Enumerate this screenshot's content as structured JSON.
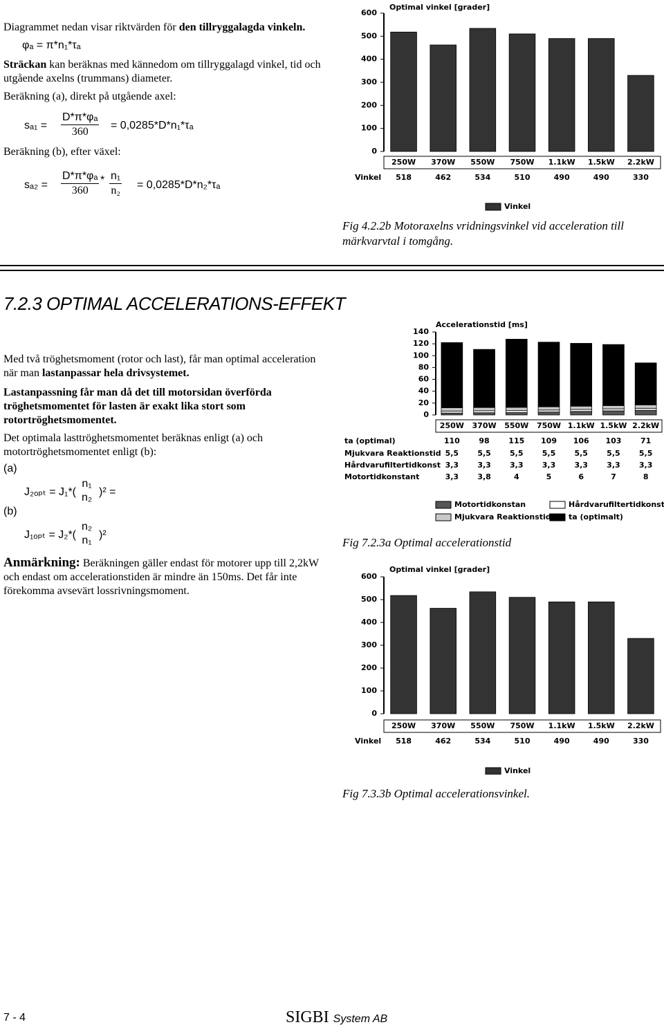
{
  "top": {
    "p1a": "Diagrammet nedan visar riktvärden för ",
    "p1b": "den tillryggalagda vinkeln.",
    "f1": "φₐ  =  π*n₁*τₐ",
    "p2a": "Sträckan",
    "p2b": " kan beräknas med kännedom om tillryggalagd vinkel, tid och utgående axelns (trummans) diameter.",
    "p3": "Beräkning (a), direkt på utgående axel:",
    "f2": {
      "lhs": "sₐ₁  =",
      "num": "D*π*φₐ",
      "den": "360",
      "rhs": "= 0,0285*D*n₁*τₐ"
    },
    "p4": "Beräkning (b), efter växel:",
    "f3": {
      "lhs": "sₐ₂  =",
      "num": "D*π*φₐ",
      "den": "360",
      "op": "*",
      "num2": "n₁",
      "den2": "n₂",
      "rhs": "= 0,0285*D*n₂*τₐ"
    },
    "caption": "Fig 4.2.2b  Motoraxelns vridningsvinkel vid acceleration till märkvarvtal i tomgång."
  },
  "section": {
    "heading": "7.2.3 OPTIMAL ACCELERATIONS-EFFEKT",
    "p1a": "Med två tröghetsmoment (rotor och last), får man optimal acceleration när man ",
    "p1b": "lastanpassar hela drivsystemet.",
    "p2": "Lastanpassning får man då det till motorsidan överförda tröghetsmomentet för lasten är exakt lika stort som rotortröghetsmomentet.",
    "p3": "Det optimala lasttröghetsmomentet beräknas enligt (a) och motortröghetsmomentet enligt (b):",
    "la": "(a)",
    "lb": "(b)",
    "fa": {
      "lhs": "J₂ₒₚₜ = J₁*(",
      "num": "n₁",
      "den": "n₂",
      "rhs": ")² ="
    },
    "fb": {
      "lhs": "J₁ₒₚₜ = J₂*(",
      "num": "n₂",
      "den": "n₁",
      "rhs": ")²"
    },
    "note_a": "Anmärkning:",
    "note_b": " Beräkningen gäller endast för motorer upp till 2,2kW och endast om accelerationstiden är mindre än 150ms. Det får inte förekomma avsevärt lossrivningsmoment.",
    "caption_a": "Fig 7.2.3a  Optimal accelerationstid",
    "caption_b": "Fig 7.3.3b  Optimal accelerationsvinkel."
  },
  "footer": {
    "page": "7 - 4",
    "brand": "SIGBI",
    "brand2": "System AB"
  },
  "chart_data": [
    {
      "type": "bar",
      "title": "Optimal vinkel [grader]",
      "categories": [
        "250W",
        "370W",
        "550W",
        "750W",
        "1.1kW",
        "1.5kW",
        "2.2kW"
      ],
      "series": [
        {
          "name": "Vinkel",
          "color": "#333333",
          "values": [
            518,
            462,
            534,
            510,
            490,
            490,
            330
          ]
        }
      ],
      "ylim": [
        0,
        600
      ],
      "yticks": [
        0,
        100,
        200,
        300,
        400,
        500,
        600
      ]
    },
    {
      "type": "stacked_bar",
      "title": "Accelerationstid [ms]",
      "categories": [
        "250W",
        "370W",
        "550W",
        "750W",
        "1.1kW",
        "1.5kW",
        "2.2kW"
      ],
      "series": [
        {
          "name": "ta (optimalt)",
          "table_label": "ta (optimal)",
          "color": "#000000",
          "values": [
            110,
            98,
            115,
            109,
            106,
            103,
            71
          ]
        },
        {
          "name": "Mjukvara Reaktionstid",
          "table_label": "Mjukvara Reaktionstid",
          "color": "#c8c8c8",
          "values": [
            5.5,
            5.5,
            5.5,
            5.5,
            5.5,
            5.5,
            5.5
          ],
          "value_labels": [
            "5,5",
            "5,5",
            "5,5",
            "5,5",
            "5,5",
            "5,5",
            "5,5"
          ]
        },
        {
          "name": "Hårdvarufiltertidkonst",
          "table_label": "Hårdvarufiltertidkonst",
          "color": "#ffffff",
          "values": [
            3.3,
            3.3,
            3.3,
            3.3,
            3.3,
            3.3,
            3.3
          ],
          "value_labels": [
            "3,3",
            "3,3",
            "3,3",
            "3,3",
            "3,3",
            "3,3",
            "3,3"
          ]
        },
        {
          "name": "Motortidkonstan",
          "table_label": "Motortidkonstant",
          "color": "#555555",
          "values": [
            3.3,
            3.8,
            4,
            5,
            6,
            7,
            8
          ],
          "value_labels": [
            "3,3",
            "3,8",
            "4",
            "5",
            "6",
            "7",
            "8"
          ]
        }
      ],
      "ylim": [
        0,
        140
      ],
      "yticks": [
        0,
        20,
        40,
        60,
        80,
        100,
        120,
        140
      ]
    },
    {
      "type": "bar",
      "title": "Optimal vinkel [grader]",
      "categories": [
        "250W",
        "370W",
        "550W",
        "750W",
        "1.1kW",
        "1.5kW",
        "2.2kW"
      ],
      "series": [
        {
          "name": "Vinkel",
          "color": "#333333",
          "values": [
            518,
            462,
            534,
            510,
            490,
            490,
            330
          ]
        }
      ],
      "ylim": [
        0,
        600
      ],
      "yticks": [
        0,
        100,
        200,
        300,
        400,
        500,
        600
      ]
    }
  ]
}
